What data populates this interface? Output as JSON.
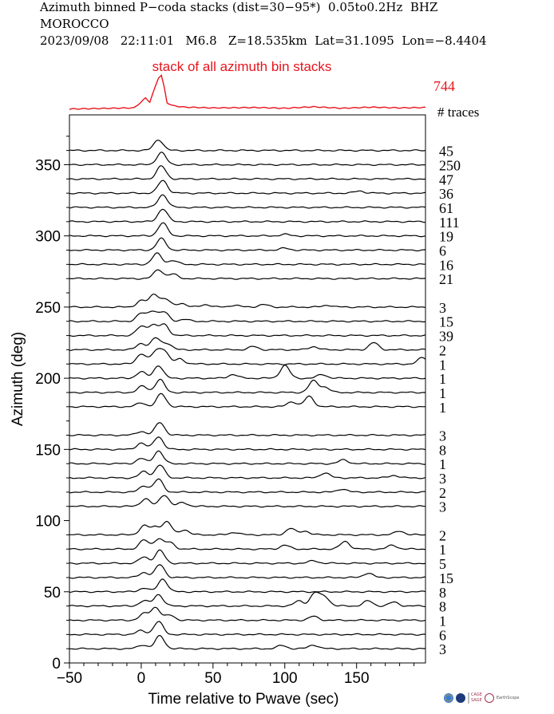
{
  "header": {
    "line1": "Azimuth binned P−coda stacks (dist=30−95*)  0.05to0.2Hz  BHZ",
    "line2": "MOROCCO",
    "line3": "2023/09/08   22:11:01   M6.8   Z=18.535km  Lat=31.1095  Lon=−8.4404"
  },
  "logos": {
    "cage_sage": "CAGE\nSAGE",
    "earthscope": "EarthScope"
  },
  "chart_data": {
    "type": "line",
    "title": "stack of all azimuth bin stacks",
    "stack_trace_count": "744",
    "traces_header": "# traces",
    "xlabel": "Time relative to Pwave (sec)",
    "ylabel": "Azimuth (deg)",
    "xlim": [
      -50,
      198
    ],
    "ylim": [
      0,
      385
    ],
    "xticks": [
      -50,
      0,
      50,
      100,
      150
    ],
    "yticks": [
      0,
      50,
      100,
      150,
      200,
      250,
      300,
      350
    ],
    "stack_color": "#e8141c",
    "trace_color": "#000000",
    "stack_wave": {
      "x": [
        -50,
        -5,
        0,
        3,
        6,
        9,
        12,
        14,
        16,
        18,
        22,
        30,
        50,
        80,
        100,
        120,
        140,
        160,
        180,
        198
      ],
      "y": [
        0.03,
        0.06,
        0.22,
        0.33,
        0.22,
        0.55,
        0.88,
        0.95,
        0.62,
        0.2,
        0.12,
        0.08,
        0.06,
        0.07,
        0.05,
        0.09,
        0.05,
        0.08,
        0.06,
        0.07
      ]
    },
    "series": [
      {
        "azimuth": 360,
        "traces": "45",
        "peaks": [
          {
            "t": 12,
            "a": 0.85
          }
        ]
      },
      {
        "azimuth": 350,
        "traces": "250",
        "peaks": [
          {
            "t": 14,
            "a": 0.95
          }
        ]
      },
      {
        "azimuth": 340,
        "traces": "47",
        "peaks": [
          {
            "t": 14,
            "a": 1.0
          }
        ]
      },
      {
        "azimuth": 330,
        "traces": "36",
        "peaks": [
          {
            "t": 15,
            "a": 1.0
          },
          {
            "t": 152,
            "a": 0.18
          }
        ]
      },
      {
        "azimuth": 320,
        "traces": "61",
        "peaks": [
          {
            "t": 15,
            "a": 1.0
          }
        ]
      },
      {
        "azimuth": 310,
        "traces": "111",
        "peaks": [
          {
            "t": 15,
            "a": 1.0
          }
        ]
      },
      {
        "azimuth": 300,
        "traces": "19",
        "peaks": [
          {
            "t": 15,
            "a": 1.0
          },
          {
            "t": 100,
            "a": 0.12
          }
        ]
      },
      {
        "azimuth": 290,
        "traces": "6",
        "peaks": [
          {
            "t": 14,
            "a": 0.9
          },
          {
            "t": 100,
            "a": 0.15
          }
        ]
      },
      {
        "azimuth": 280,
        "traces": "16",
        "peaks": [
          {
            "t": 11,
            "a": 0.85
          },
          {
            "t": 22,
            "a": 0.3
          }
        ]
      },
      {
        "azimuth": 270,
        "traces": "21",
        "peaks": [
          {
            "t": 12,
            "a": 0.7
          },
          {
            "t": 22,
            "a": 0.35
          }
        ]
      },
      {
        "azimuth": 250,
        "traces": "3",
        "peaks": [
          {
            "t": 0,
            "a": 0.5
          },
          {
            "t": 9,
            "a": 1.0
          },
          {
            "t": 17,
            "a": 0.6
          },
          {
            "t": 28,
            "a": 0.3
          },
          {
            "t": 45,
            "a": 0.2
          },
          {
            "t": 65,
            "a": 0.15
          },
          {
            "t": 85,
            "a": 0.2
          },
          {
            "t": 130,
            "a": 0.15
          }
        ]
      },
      {
        "azimuth": 240,
        "traces": "15",
        "peaks": [
          {
            "t": 0,
            "a": 0.6
          },
          {
            "t": 8,
            "a": 0.8
          },
          {
            "t": 16,
            "a": 0.7
          },
          {
            "t": 30,
            "a": 0.15
          }
        ]
      },
      {
        "azimuth": 230,
        "traces": "39",
        "peaks": [
          {
            "t": 0,
            "a": 0.7
          },
          {
            "t": 8,
            "a": 0.8
          },
          {
            "t": 16,
            "a": 0.85
          }
        ]
      },
      {
        "azimuth": 220,
        "traces": "2",
        "peaks": [
          {
            "t": 0,
            "a": 0.5
          },
          {
            "t": 10,
            "a": 0.9
          },
          {
            "t": 18,
            "a": 0.5
          },
          {
            "t": 78,
            "a": 0.25
          },
          {
            "t": 120,
            "a": 0.25
          },
          {
            "t": 162,
            "a": 0.55
          }
        ]
      },
      {
        "azimuth": 210,
        "traces": "1",
        "peaks": [
          {
            "t": 0,
            "a": 0.8
          },
          {
            "t": 10,
            "a": 0.9
          },
          {
            "t": 16,
            "a": 1.0
          },
          {
            "t": 27,
            "a": 0.4
          },
          {
            "t": 196,
            "a": 0.5
          }
        ]
      },
      {
        "azimuth": 200,
        "traces": "1",
        "peaks": [
          {
            "t": 0,
            "a": 0.5
          },
          {
            "t": 12,
            "a": 1.0
          },
          {
            "t": 64,
            "a": 0.3
          },
          {
            "t": 100,
            "a": 1.0
          },
          {
            "t": 126,
            "a": 0.3
          }
        ]
      },
      {
        "azimuth": 190,
        "traces": "1",
        "peaks": [
          {
            "t": 1,
            "a": 0.5
          },
          {
            "t": 13,
            "a": 1.0
          },
          {
            "t": 120,
            "a": 0.9
          },
          {
            "t": 128,
            "a": 0.4
          }
        ]
      },
      {
        "azimuth": 180,
        "traces": "1",
        "peaks": [
          {
            "t": 0,
            "a": 0.3
          },
          {
            "t": 14,
            "a": 1.0
          },
          {
            "t": 105,
            "a": 0.4
          },
          {
            "t": 117,
            "a": 0.8
          }
        ]
      },
      {
        "azimuth": 160,
        "traces": "3",
        "peaks": [
          {
            "t": 0,
            "a": 0.3
          },
          {
            "t": 13,
            "a": 1.0
          }
        ]
      },
      {
        "azimuth": 150,
        "traces": "8",
        "peaks": [
          {
            "t": 0,
            "a": 0.5
          },
          {
            "t": 12,
            "a": 1.0
          }
        ]
      },
      {
        "azimuth": 140,
        "traces": "1",
        "peaks": [
          {
            "t": 0,
            "a": 0.4
          },
          {
            "t": 12,
            "a": 1.0
          },
          {
            "t": 141,
            "a": 0.3
          }
        ]
      },
      {
        "azimuth": 130,
        "traces": "3",
        "peaks": [
          {
            "t": 2,
            "a": 0.5
          },
          {
            "t": 13,
            "a": 1.0
          },
          {
            "t": 128,
            "a": 0.4
          },
          {
            "t": 176,
            "a": 0.2
          }
        ]
      },
      {
        "azimuth": 120,
        "traces": "2",
        "peaks": [
          {
            "t": 2,
            "a": 0.5
          },
          {
            "t": 12,
            "a": 1.0
          },
          {
            "t": 140,
            "a": 0.25
          }
        ]
      },
      {
        "azimuth": 110,
        "traces": "3",
        "peaks": [
          {
            "t": 3,
            "a": 0.6
          },
          {
            "t": 16,
            "a": 0.9
          },
          {
            "t": 29,
            "a": 0.3
          }
        ]
      },
      {
        "azimuth": 90,
        "traces": "2",
        "peaks": [
          {
            "t": 2,
            "a": 0.7
          },
          {
            "t": 10,
            "a": 0.6
          },
          {
            "t": 18,
            "a": 1.0
          },
          {
            "t": 30,
            "a": 0.4
          },
          {
            "t": 65,
            "a": 0.2
          },
          {
            "t": 104,
            "a": 0.5
          },
          {
            "t": 114,
            "a": 0.3
          },
          {
            "t": 180,
            "a": 0.3
          }
        ]
      },
      {
        "azimuth": 80,
        "traces": "1",
        "peaks": [
          {
            "t": 2,
            "a": 0.7
          },
          {
            "t": 12,
            "a": 0.8
          },
          {
            "t": 20,
            "a": 0.5
          },
          {
            "t": 100,
            "a": 0.3
          },
          {
            "t": 142,
            "a": 0.6
          },
          {
            "t": 175,
            "a": 0.3
          }
        ]
      },
      {
        "azimuth": 70,
        "traces": "5",
        "peaks": [
          {
            "t": 2,
            "a": 0.5
          },
          {
            "t": 13,
            "a": 1.0
          },
          {
            "t": 120,
            "a": 0.2
          }
        ]
      },
      {
        "azimuth": 60,
        "traces": "15",
        "peaks": [
          {
            "t": 2,
            "a": 0.4
          },
          {
            "t": 13,
            "a": 1.0
          },
          {
            "t": 158,
            "a": 0.35
          }
        ]
      },
      {
        "azimuth": 50,
        "traces": "8",
        "peaks": [
          {
            "t": 2,
            "a": 0.3
          },
          {
            "t": 15,
            "a": 1.0
          }
        ]
      },
      {
        "azimuth": 40,
        "traces": "8",
        "peaks": [
          {
            "t": 2,
            "a": 0.4
          },
          {
            "t": 12,
            "a": 0.9
          },
          {
            "t": 110,
            "a": 0.4
          },
          {
            "t": 121,
            "a": 1.0
          },
          {
            "t": 128,
            "a": 0.7
          },
          {
            "t": 158,
            "a": 0.4
          },
          {
            "t": 176,
            "a": 0.3
          }
        ]
      },
      {
        "azimuth": 30,
        "traces": "1",
        "peaks": [
          {
            "t": 2,
            "a": 0.5
          },
          {
            "t": 10,
            "a": 1.0
          },
          {
            "t": 20,
            "a": 0.4
          },
          {
            "t": 120,
            "a": 0.3
          }
        ]
      },
      {
        "azimuth": 20,
        "traces": "6",
        "peaks": [
          {
            "t": 0,
            "a": 0.3
          },
          {
            "t": 12,
            "a": 1.0
          }
        ]
      },
      {
        "azimuth": 10,
        "traces": "3",
        "peaks": [
          {
            "t": 1,
            "a": 0.3
          },
          {
            "t": 13,
            "a": 1.0
          },
          {
            "t": 98,
            "a": 0.25
          },
          {
            "t": 120,
            "a": 0.3
          }
        ]
      }
    ]
  }
}
